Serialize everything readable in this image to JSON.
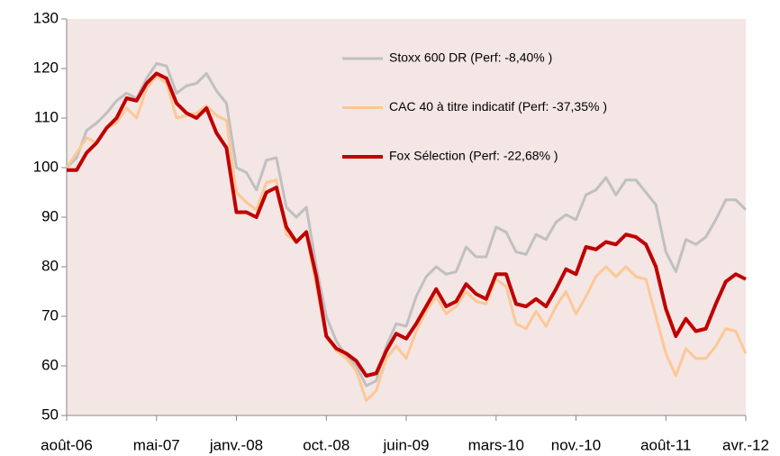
{
  "chart_data": {
    "type": "line",
    "categories": [
      "août-06",
      null,
      null,
      null,
      null,
      null,
      null,
      null,
      null,
      "mai-07",
      null,
      null,
      null,
      null,
      null,
      null,
      null,
      "janv.-08",
      null,
      null,
      null,
      null,
      null,
      null,
      null,
      null,
      "oct.-08",
      null,
      null,
      null,
      null,
      null,
      null,
      null,
      "juin-09",
      null,
      null,
      null,
      null,
      null,
      null,
      null,
      null,
      "mars-10",
      null,
      null,
      null,
      null,
      null,
      null,
      null,
      "nov.-10",
      null,
      null,
      null,
      null,
      null,
      null,
      null,
      null,
      "août-11",
      null,
      null,
      null,
      null,
      null,
      null,
      null,
      "avr.-12"
    ],
    "series": [
      {
        "name": "Stoxx 600 DR (Perf: -8,40% )",
        "color": "#c0c0c0",
        "values": [
          100,
          102,
          107.5,
          109,
          111,
          113.5,
          115,
          114,
          118,
          121,
          120.5,
          115,
          116.5,
          117,
          119,
          115.5,
          113,
          100,
          99,
          95.5,
          101.5,
          102,
          92,
          90,
          92,
          80,
          70,
          65,
          62,
          60,
          56,
          57,
          64,
          68.5,
          68,
          74,
          78,
          80,
          78.5,
          79,
          84,
          82,
          82,
          88,
          87,
          83,
          82.5,
          86.5,
          85.5,
          89,
          90.5,
          89.5,
          94.5,
          95.5,
          98,
          94.5,
          97.5,
          97.5,
          95,
          92.5,
          83,
          79,
          85.5,
          84.5,
          86,
          89.5,
          93.5,
          93.5,
          91.5
        ]
      },
      {
        "name": "CAC 40 à titre indicatif  (Perf: -37,35% )",
        "color": "#fdc896",
        "values": [
          100,
          103,
          106,
          105,
          108,
          109,
          112,
          110,
          116,
          118.5,
          117,
          110,
          110.5,
          111,
          112.5,
          110.5,
          109.5,
          95,
          93,
          91.5,
          97,
          97.5,
          86.5,
          85,
          87,
          76,
          66,
          63,
          61.5,
          59,
          53,
          55,
          61.5,
          64,
          61.5,
          67,
          71,
          74,
          70.5,
          72,
          75,
          73,
          72.5,
          77.5,
          76,
          68.5,
          67.5,
          71,
          68,
          72,
          75,
          70.5,
          74,
          78,
          80,
          78,
          80,
          78,
          77.5,
          70,
          62.5,
          58,
          63.5,
          61.5,
          61.5,
          64,
          67.5,
          67,
          62.5
        ]
      },
      {
        "name": "Fox Sélection (Perf: -22,68% )",
        "color": "#c00000",
        "values": [
          99.5,
          99.5,
          103,
          105,
          108,
          110,
          114,
          113.5,
          117,
          119,
          118,
          113,
          111,
          110,
          112,
          107,
          104,
          91,
          91,
          90,
          95,
          96,
          88,
          85,
          87,
          78,
          66,
          63.5,
          62.5,
          61,
          58,
          58.5,
          63,
          66.5,
          65.5,
          68.5,
          72,
          75.5,
          72,
          73,
          76.5,
          74.5,
          73.5,
          78.5,
          78.5,
          72.5,
          72,
          73.5,
          72,
          75.5,
          79.5,
          78.5,
          84,
          83.5,
          85,
          84.5,
          86.5,
          86,
          84.5,
          80,
          71.5,
          66,
          69.5,
          67,
          67.5,
          72.5,
          77,
          78.5,
          77.5
        ]
      }
    ],
    "ylim": [
      50,
      130
    ],
    "yticks": [
      50,
      60,
      70,
      80,
      90,
      100,
      110,
      120,
      130
    ],
    "background": "#f3e6e5"
  }
}
